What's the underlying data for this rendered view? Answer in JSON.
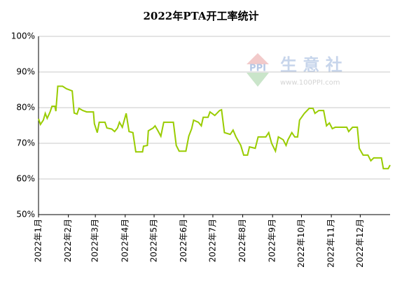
{
  "chart_data": {
    "type": "line",
    "title": "2022年PTA开工率统计",
    "watermark": {
      "logo": "PPI",
      "name": "生 意 社",
      "url": "www.100PPI.com"
    },
    "x": [
      0,
      2,
      5,
      7,
      9,
      12,
      14,
      17,
      18,
      20,
      25,
      29,
      35,
      37,
      40,
      42,
      46,
      50,
      57,
      58,
      61,
      63,
      69,
      71,
      76,
      79,
      82,
      84,
      87,
      91,
      94,
      98,
      101,
      108,
      109,
      113,
      114,
      119,
      121,
      124,
      127,
      130,
      140,
      143,
      146,
      153,
      156,
      159,
      161,
      166,
      169,
      171,
      176,
      178,
      183,
      188,
      190,
      193,
      199,
      202,
      205,
      210,
      213,
      217,
      219,
      225,
      228,
      236,
      239,
      242,
      246,
      249,
      254,
      257,
      259,
      263,
      266,
      269,
      271,
      276,
      281,
      285,
      287,
      291,
      296,
      299,
      302,
      305,
      308,
      320,
      322,
      326,
      331,
      333,
      337,
      342,
      345,
      348,
      356,
      358,
      363,
      365
    ],
    "series": [
      {
        "name": "PTA开工率",
        "color": "#99cc00",
        "values": [
          76.9,
          75.3,
          76.5,
          78.4,
          77,
          78.8,
          80.4,
          80.4,
          79,
          86,
          86,
          85.3,
          84.7,
          78.5,
          78.2,
          79.8,
          79.2,
          78.8,
          78.8,
          75.5,
          73,
          75.9,
          75.9,
          74.3,
          74,
          73.3,
          74.3,
          75.9,
          74.5,
          78.4,
          73.3,
          73,
          67.6,
          67.6,
          69.2,
          69.4,
          73.5,
          74.3,
          74.9,
          73.5,
          72,
          75.9,
          75.9,
          69.4,
          67.8,
          67.8,
          72,
          74.1,
          76.5,
          75.9,
          74.9,
          77.3,
          77.3,
          78.8,
          77.8,
          79.2,
          79.4,
          73,
          72.5,
          73.7,
          71.8,
          69.4,
          66.7,
          66.7,
          69,
          68.6,
          71.8,
          71.8,
          73,
          70,
          67.8,
          71.8,
          71,
          69.4,
          71,
          73,
          71.8,
          71.8,
          76.5,
          78.4,
          79.8,
          79.8,
          78.4,
          79.2,
          79.2,
          74.9,
          75.7,
          74.1,
          74.5,
          74.5,
          73.3,
          74.5,
          74.5,
          68.6,
          66.7,
          66.7,
          65.1,
          65.9,
          65.9,
          62.9,
          62.9,
          63.9
        ]
      }
    ],
    "xlim": [
      0,
      365
    ],
    "xticks": [
      {
        "value": 0,
        "label": "2022年1月"
      },
      {
        "value": 31,
        "label": "2022年2月"
      },
      {
        "value": 59,
        "label": "2022年3月"
      },
      {
        "value": 90,
        "label": "2022年4月"
      },
      {
        "value": 120,
        "label": "2022年5月"
      },
      {
        "value": 151,
        "label": "2022年6月"
      },
      {
        "value": 181,
        "label": "2022年7月"
      },
      {
        "value": 212,
        "label": "2022年8月"
      },
      {
        "value": 243,
        "label": "2022年9月"
      },
      {
        "value": 273,
        "label": "2022年10月"
      },
      {
        "value": 304,
        "label": "2022年11月"
      },
      {
        "value": 334,
        "label": "2022年12月"
      }
    ],
    "ylim": [
      50,
      100
    ],
    "yticks": [
      {
        "value": 50,
        "label": "50%"
      },
      {
        "value": 60,
        "label": "60%"
      },
      {
        "value": 70,
        "label": "70%"
      },
      {
        "value": 80,
        "label": "80%"
      },
      {
        "value": 90,
        "label": "90%"
      },
      {
        "value": 100,
        "label": "100%"
      }
    ],
    "grid": true
  }
}
